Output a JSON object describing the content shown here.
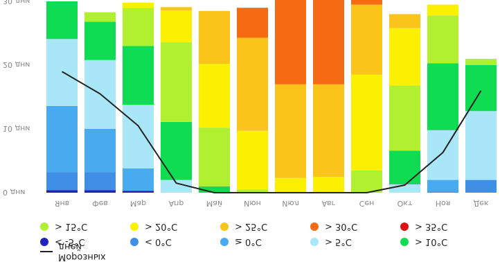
{
  "chart_data": {
    "type": "bar",
    "categories": [
      "Янв",
      "Фев",
      "Мар",
      "Апр",
      "Май",
      "Июн",
      "Июл",
      "Авг",
      "Сен",
      "Окт",
      "Ноя",
      "Дек"
    ],
    "ylim": [
      0,
      30
    ],
    "yticks": [
      {
        "value": 0,
        "label": "0 дни"
      },
      {
        "value": 10,
        "label": "10 дни"
      },
      {
        "value": 20,
        "label": "20 дни"
      },
      {
        "value": 30,
        "label": "30 дни"
      }
    ],
    "grid": false,
    "legend_position": "top",
    "series": [
      {
        "name": "< -5°C",
        "color": "#2222bb",
        "values": [
          0.4,
          0.4,
          0.3,
          0,
          0,
          0,
          0,
          0,
          0,
          0,
          0,
          0
        ]
      },
      {
        "name": "< 0°C",
        "color": "#3f8fe6",
        "values": [
          2.8,
          2.8,
          0,
          0,
          0,
          0,
          0,
          0,
          0,
          0,
          0.2,
          2.0
        ]
      },
      {
        "name": "≥ 0°C",
        "color": "#4aaaf0",
        "values": [
          10.4,
          6.8,
          3.5,
          0,
          0,
          0,
          0,
          0,
          0,
          0,
          1.8,
          0
        ]
      },
      {
        "name": "> 5°C",
        "color": "#a8e6f8",
        "values": [
          10.5,
          10.8,
          10.0,
          2.0,
          0,
          0,
          0,
          0,
          0,
          1.3,
          7.8,
          10.8
        ]
      },
      {
        "name": "> 10°C",
        "color": "#0fdc50",
        "values": [
          5.9,
          6.0,
          9.2,
          9.1,
          1.0,
          0,
          0,
          0,
          0,
          5.3,
          10.5,
          7.2
        ]
      },
      {
        "name": "> 15°C",
        "color": "#b0f030",
        "values": [
          0,
          1.5,
          6.0,
          12.5,
          9.2,
          0.5,
          0,
          0,
          3.5,
          10.2,
          7.5,
          1.0
        ]
      },
      {
        "name": "> 20°C",
        "color": "#faf000",
        "values": [
          0,
          0,
          0.8,
          5.0,
          10.0,
          9.2,
          2.3,
          2.5,
          15.0,
          9.0,
          1.7,
          0
        ]
      },
      {
        "name": "> 25°C",
        "color": "#fbc41a",
        "values": [
          0,
          0,
          0,
          0.5,
          8.3,
          14.6,
          14.7,
          14.5,
          11.0,
          2.2,
          0,
          0
        ]
      },
      {
        "name": "> 30°C",
        "color": "#f56a12",
        "values": [
          0,
          0,
          0,
          0,
          0,
          4.7,
          13.5,
          13.5,
          1.5,
          0,
          0,
          0
        ]
      },
      {
        "name": "> 35°C",
        "color": "#dd1010",
        "values": [
          0,
          0,
          0,
          0,
          0,
          0,
          0.3,
          0.3,
          0,
          0,
          0,
          0
        ]
      }
    ],
    "line": {
      "name": "Морозных дней",
      "color": "#222222",
      "values": [
        19.0,
        15.5,
        10.5,
        1.5,
        0,
        0,
        0,
        0,
        0,
        1.2,
        6.3,
        16.0
      ]
    }
  }
}
